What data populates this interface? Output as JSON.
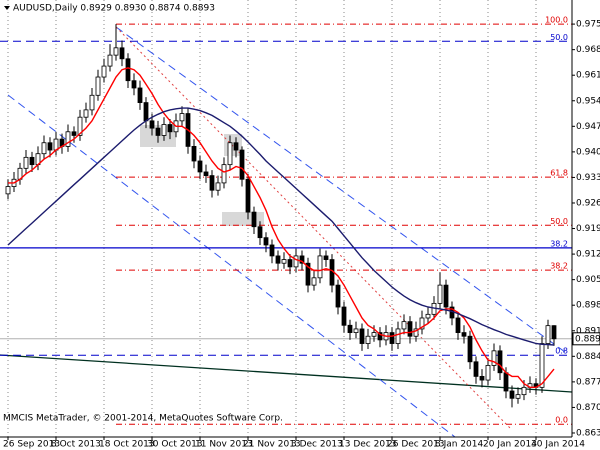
{
  "chart_data": {
    "type": "candlestick",
    "title": "AUDUSD,Daily  0.8929 0.8930 0.8874 0.8893",
    "footer": "MMCIS MetaTrader, © 2001-2014, MetaQuotes Software Corp.",
    "categories": [
      "26 Sep 2013",
      null,
      null,
      null,
      null,
      null,
      null,
      null,
      "8 Oct 2013",
      null,
      null,
      null,
      null,
      null,
      null,
      null,
      "18 Oct 2013",
      null,
      null,
      null,
      null,
      null,
      null,
      null,
      "30 Oct 2013",
      null,
      null,
      null,
      null,
      null,
      null,
      null,
      "11 Nov 2013",
      null,
      null,
      null,
      null,
      null,
      null,
      null,
      "21 Nov 2013",
      null,
      null,
      null,
      null,
      null,
      null,
      null,
      "3 Dec 2013",
      null,
      null,
      null,
      null,
      null,
      null,
      null,
      "13 Dec 2013",
      null,
      null,
      null,
      null,
      null,
      null,
      null,
      "26 Dec 2013",
      null,
      null,
      null,
      null,
      null,
      null,
      null,
      "8 Jan 2014",
      null,
      null,
      null,
      null,
      null,
      null,
      null,
      "20 Jan 2014",
      null,
      null,
      null,
      null,
      null,
      null,
      null,
      "30 Jan 2014",
      null,
      null,
      null
    ],
    "open": [
      0.929,
      0.931,
      0.933,
      0.936,
      0.939,
      0.937,
      0.94,
      0.943,
      0.941,
      0.944,
      0.942,
      0.946,
      0.945,
      0.95,
      0.952,
      0.956,
      0.961,
      0.964,
      0.967,
      0.969,
      0.966,
      0.96,
      0.958,
      0.954,
      0.949,
      0.947,
      0.945,
      0.948,
      0.946,
      0.949,
      0.951,
      0.942,
      0.938,
      0.935,
      0.934,
      0.93,
      0.932,
      0.937,
      0.943,
      0.941,
      0.933,
      0.924,
      0.92,
      0.917,
      0.915,
      0.912,
      0.91,
      0.911,
      0.909,
      0.912,
      0.91,
      0.904,
      0.906,
      0.912,
      0.911,
      0.904,
      0.898,
      0.893,
      0.891,
      0.892,
      0.888,
      0.89,
      0.891,
      0.889,
      0.891,
      0.888,
      0.892,
      0.894,
      0.89,
      0.892,
      0.895,
      0.896,
      0.899,
      0.904,
      0.898,
      0.895,
      0.891,
      0.89,
      0.883,
      0.879,
      0.878,
      0.882,
      0.886,
      0.88,
      0.875,
      0.873,
      0.874,
      0.876,
      0.877,
      0.876,
      0.888,
      0.8929
    ],
    "high": [
      0.933,
      0.935,
      0.9375,
      0.941,
      0.9405,
      0.942,
      0.945,
      0.9445,
      0.946,
      0.9455,
      0.948,
      0.9475,
      0.952,
      0.954,
      0.958,
      0.963,
      0.966,
      0.97,
      0.9755,
      0.971,
      0.9675,
      0.962,
      0.96,
      0.9555,
      0.951,
      0.949,
      0.95,
      0.9495,
      0.951,
      0.953,
      0.9525,
      0.944,
      0.9395,
      0.937,
      0.9355,
      0.934,
      0.939,
      0.945,
      0.9445,
      0.942,
      0.9345,
      0.9255,
      0.9215,
      0.9185,
      0.9165,
      0.9135,
      0.913,
      0.9125,
      0.914,
      0.9135,
      0.9115,
      0.908,
      0.914,
      0.9135,
      0.9125,
      0.9055,
      0.8995,
      0.8945,
      0.894,
      0.8935,
      0.892,
      0.893,
      0.8925,
      0.893,
      0.8925,
      0.894,
      0.896,
      0.8955,
      0.894,
      0.897,
      0.898,
      0.901,
      0.9075,
      0.9055,
      0.8995,
      0.8965,
      0.893,
      0.8915,
      0.8845,
      0.881,
      0.884,
      0.888,
      0.8875,
      0.8815,
      0.8765,
      0.876,
      0.878,
      0.879,
      0.8785,
      0.89,
      0.8945,
      0.893
    ],
    "low": [
      0.9275,
      0.9295,
      0.9315,
      0.9345,
      0.935,
      0.9355,
      0.9385,
      0.939,
      0.9395,
      0.94,
      0.9405,
      0.943,
      0.9435,
      0.9485,
      0.9505,
      0.9545,
      0.9595,
      0.9625,
      0.9655,
      0.964,
      0.958,
      0.956,
      0.952,
      0.947,
      0.945,
      0.943,
      0.9435,
      0.944,
      0.9445,
      0.9475,
      0.94,
      0.936,
      0.933,
      0.932,
      0.928,
      0.9285,
      0.9305,
      0.9355,
      0.939,
      0.931,
      0.922,
      0.918,
      0.915,
      0.913,
      0.91,
      0.908,
      0.9085,
      0.907,
      0.9075,
      0.908,
      0.902,
      0.9025,
      0.9045,
      0.909,
      0.902,
      0.896,
      0.891,
      0.889,
      0.8895,
      0.886,
      0.8865,
      0.8885,
      0.887,
      0.8875,
      0.886,
      0.8865,
      0.8905,
      0.888,
      0.8885,
      0.8905,
      0.8935,
      0.8945,
      0.8975,
      0.896,
      0.893,
      0.889,
      0.888,
      0.881,
      0.877,
      0.876,
      0.8765,
      0.8805,
      0.878,
      0.873,
      0.8705,
      0.8715,
      0.8725,
      0.8745,
      0.874,
      0.8745,
      0.8865,
      0.8874
    ],
    "close": [
      0.931,
      0.933,
      0.936,
      0.939,
      0.937,
      0.94,
      0.943,
      0.941,
      0.944,
      0.942,
      0.946,
      0.945,
      0.95,
      0.952,
      0.956,
      0.961,
      0.964,
      0.967,
      0.969,
      0.966,
      0.96,
      0.958,
      0.954,
      0.949,
      0.947,
      0.945,
      0.948,
      0.946,
      0.949,
      0.951,
      0.942,
      0.938,
      0.935,
      0.934,
      0.93,
      0.932,
      0.937,
      0.943,
      0.941,
      0.933,
      0.924,
      0.92,
      0.917,
      0.915,
      0.912,
      0.91,
      0.911,
      0.909,
      0.912,
      0.91,
      0.904,
      0.906,
      0.912,
      0.911,
      0.904,
      0.898,
      0.893,
      0.891,
      0.892,
      0.888,
      0.89,
      0.891,
      0.889,
      0.891,
      0.888,
      0.892,
      0.894,
      0.89,
      0.892,
      0.895,
      0.896,
      0.899,
      0.904,
      0.898,
      0.895,
      0.891,
      0.89,
      0.883,
      0.879,
      0.878,
      0.882,
      0.886,
      0.88,
      0.875,
      0.873,
      0.874,
      0.876,
      0.877,
      0.876,
      0.888,
      0.8929,
      0.8893
    ],
    "up_color": "#ffffff",
    "down_color": "#000000",
    "candle_outline": "#000000",
    "lines": [
      {
        "color": "#ff0000",
        "values": [
          0.932,
          0.932,
          0.933,
          0.9345,
          0.9355,
          0.937,
          0.9385,
          0.9395,
          0.941,
          0.942,
          0.943,
          0.944,
          0.9455,
          0.947,
          0.949,
          0.952,
          0.955,
          0.958,
          0.961,
          0.963,
          0.9635,
          0.963,
          0.9615,
          0.959,
          0.9565,
          0.9535,
          0.951,
          0.949,
          0.9475,
          0.9475,
          0.9465,
          0.945,
          0.943,
          0.9405,
          0.938,
          0.936,
          0.935,
          0.9355,
          0.9365,
          0.936,
          0.934,
          0.931,
          0.928,
          0.9245,
          0.92,
          0.9165,
          0.914,
          0.912,
          0.911,
          0.9105,
          0.909,
          0.908,
          0.908,
          0.9085,
          0.908,
          0.9065,
          0.904,
          0.901,
          0.898,
          0.895,
          0.893,
          0.892,
          0.8905,
          0.89,
          0.89,
          0.8905,
          0.891,
          0.891,
          0.8915,
          0.8925,
          0.8935,
          0.895,
          0.897,
          0.8975,
          0.8975,
          0.8965,
          0.895,
          0.8925,
          0.889,
          0.886,
          0.8835,
          0.883,
          0.882,
          0.88,
          0.879,
          0.879,
          0.877,
          0.876,
          0.876,
          0.877,
          0.879,
          0.881
        ]
      },
      {
        "color": "#1c1c6e",
        "values": [
          0.915,
          0.9165,
          0.918,
          0.9195,
          0.921,
          0.9225,
          0.924,
          0.9255,
          0.927,
          0.9285,
          0.93,
          0.9315,
          0.933,
          0.9345,
          0.936,
          0.9375,
          0.939,
          0.9405,
          0.942,
          0.9435,
          0.945,
          0.9465,
          0.9478,
          0.949,
          0.95,
          0.9508,
          0.9515,
          0.952,
          0.9523,
          0.9525,
          0.9525,
          0.9522,
          0.9518,
          0.9512,
          0.9505,
          0.9495,
          0.9485,
          0.9475,
          0.9462,
          0.9448,
          0.9432,
          0.9415,
          0.9398,
          0.938,
          0.9365,
          0.935,
          0.9335,
          0.932,
          0.9305,
          0.929,
          0.9275,
          0.926,
          0.9245,
          0.923,
          0.9215,
          0.9195,
          0.9175,
          0.9155,
          0.9135,
          0.9115,
          0.9098,
          0.908,
          0.9065,
          0.905,
          0.9035,
          0.9022,
          0.901,
          0.9,
          0.8992,
          0.8985,
          0.898,
          0.8977,
          0.8975,
          0.8972,
          0.8968,
          0.8962,
          0.8955,
          0.8948,
          0.894,
          0.8932,
          0.8925,
          0.8918,
          0.8912,
          0.8905,
          0.89,
          0.8895,
          0.889,
          0.8885,
          0.888,
          0.8878,
          0.8877,
          0.8876
        ]
      }
    ],
    "fib_levels": [
      {
        "value": 0.9755,
        "label": "100.0"
      },
      {
        "value": 0.9336,
        "label": "61.8"
      },
      {
        "value": 0.9204,
        "label": "50.0"
      },
      {
        "value": 0.9081,
        "label": "38.2"
      },
      {
        "value": 0.8659,
        "label": "0.0"
      }
    ],
    "fib_color": "#e00000",
    "blue_levels": [
      {
        "value": 0.9708,
        "label": "50.0",
        "style": "dash"
      },
      {
        "value": 0.9142,
        "label": "38.2",
        "style": "solid"
      },
      {
        "value": 0.8848,
        "label": "0.8",
        "style": "dash"
      }
    ],
    "blue_color": "#0000cc",
    "current_price": 0.8893,
    "ylim": [
      0.8624,
      0.9821
    ],
    "yticks": [
      0.9755,
      0.9685,
      0.9615,
      0.9545,
      0.9475,
      0.9405,
      0.9335,
      0.9265,
      0.9195,
      0.9125,
      0.9055,
      0.8985,
      0.8915,
      0.8845,
      0.8775,
      0.8705,
      0.8635
    ],
    "grid": "vertical"
  }
}
